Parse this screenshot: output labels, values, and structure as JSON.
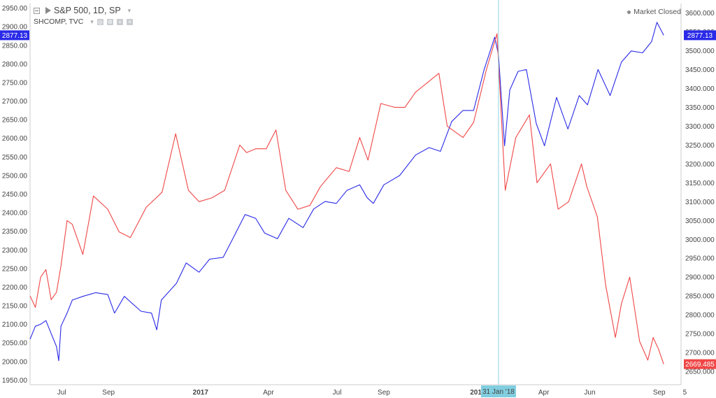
{
  "legend": {
    "symbol": "S&P 500, 1D, SP",
    "compare_symbol": "SHCOMP, TVC",
    "icons": [
      "collapse-icon",
      "flag-icon",
      "dropdown-caret-icon",
      "settings-icon",
      "gear-icon",
      "plus-icon",
      "close-icon"
    ]
  },
  "market_status": "Market Closed",
  "colors": {
    "sp500": "#2a2ae8",
    "shcomp": "#f04646",
    "crosshair": "#8fd3e3",
    "crosshair_label_bg": "#80cedf",
    "axis_line": "#cccccc"
  },
  "crosshair_date": "31 Jan '18",
  "price_labels": {
    "left": "2877.13",
    "right_top": "2877.13",
    "right_bottom": "2669.485"
  },
  "chart_data": {
    "type": "line",
    "title": "S&P 500, 1D, SP",
    "x_axis": {
      "start": "2016-05-20",
      "end": "2018-09-30",
      "tick_labels": [
        {
          "label": "Jul",
          "date": "2016-07-01",
          "bold": false
        },
        {
          "label": "Sep",
          "date": "2016-09-01",
          "bold": false
        },
        {
          "label": "2017",
          "date": "2017-01-01",
          "bold": true
        },
        {
          "label": "Apr",
          "date": "2017-04-01",
          "bold": false
        },
        {
          "label": "Jul",
          "date": "2017-07-01",
          "bold": false
        },
        {
          "label": "Sep",
          "date": "2017-09-01",
          "bold": false
        },
        {
          "label": "201",
          "date": "2018-01-01",
          "bold": true
        },
        {
          "label": "Apr",
          "date": "2018-04-01",
          "bold": false
        },
        {
          "label": "Jun",
          "date": "2018-06-01",
          "bold": false
        },
        {
          "label": "Sep",
          "date": "2018-09-01",
          "bold": false
        },
        {
          "label": "5",
          "date": "2018-10-05",
          "bold": false
        }
      ]
    },
    "left_axis": {
      "min": 1937.5,
      "max": 2962.5,
      "ticks": [
        1950,
        2000,
        2050,
        2100,
        2150,
        2200,
        2250,
        2300,
        2350,
        2400,
        2450,
        2500,
        2550,
        2600,
        2650,
        2700,
        2750,
        2800,
        2850,
        2900,
        2950
      ],
      "tick_labels": [
        "1950.00",
        "2000.00",
        "2050.00",
        "2100.00",
        "2150.00",
        "2200.00",
        "2250.00",
        "2300.00",
        "2350.00",
        "2400.00",
        "2450.00",
        "2500.00",
        "2550.00",
        "2600.00",
        "2650.00",
        "2700.00",
        "2750.00",
        "2800.00",
        "2850.00",
        "2900.00",
        "2950.00"
      ]
    },
    "right_axis": {
      "min": 2615,
      "max": 3625,
      "ticks": [
        2650,
        2700,
        2750,
        2800,
        2850,
        2900,
        2950,
        3000,
        3050,
        3100,
        3150,
        3200,
        3250,
        3300,
        3350,
        3400,
        3450,
        3500,
        3550,
        3600
      ],
      "tick_labels": [
        "2650.000",
        "2700.000",
        "2750.000",
        "2800.000",
        "2850.000",
        "2900.000",
        "2950.000",
        "3000.000",
        "3050.000",
        "3100.000",
        "3150.000",
        "3200.000",
        "3250.000",
        "3300.000",
        "3350.000",
        "3400.000",
        "3450.000",
        "3500.000",
        "3550.000",
        "3600.000"
      ]
    },
    "series": [
      {
        "name": "S&P 500, 1D, SP",
        "axis": "left",
        "color": "#2a2ae8",
        "points": [
          [
            "2016-05-20",
            2060
          ],
          [
            "2016-05-27",
            2095
          ],
          [
            "2016-06-03",
            2100
          ],
          [
            "2016-06-10",
            2110
          ],
          [
            "2016-06-17",
            2075
          ],
          [
            "2016-06-24",
            2040
          ],
          [
            "2016-06-27",
            2002
          ],
          [
            "2016-06-30",
            2095
          ],
          [
            "2016-07-08",
            2130
          ],
          [
            "2016-07-15",
            2165
          ],
          [
            "2016-07-29",
            2175
          ],
          [
            "2016-08-15",
            2185
          ],
          [
            "2016-08-31",
            2180
          ],
          [
            "2016-09-09",
            2130
          ],
          [
            "2016-09-22",
            2175
          ],
          [
            "2016-10-14",
            2135
          ],
          [
            "2016-10-28",
            2130
          ],
          [
            "2016-11-04",
            2085
          ],
          [
            "2016-11-10",
            2165
          ],
          [
            "2016-11-30",
            2210
          ],
          [
            "2016-12-13",
            2265
          ],
          [
            "2016-12-30",
            2240
          ],
          [
            "2017-01-13",
            2275
          ],
          [
            "2017-01-31",
            2280
          ],
          [
            "2017-02-14",
            2335
          ],
          [
            "2017-03-01",
            2395
          ],
          [
            "2017-03-15",
            2385
          ],
          [
            "2017-03-27",
            2345
          ],
          [
            "2017-04-13",
            2330
          ],
          [
            "2017-04-28",
            2385
          ],
          [
            "2017-05-17",
            2360
          ],
          [
            "2017-05-31",
            2410
          ],
          [
            "2017-06-15",
            2430
          ],
          [
            "2017-06-30",
            2425
          ],
          [
            "2017-07-14",
            2460
          ],
          [
            "2017-07-31",
            2475
          ],
          [
            "2017-08-10",
            2440
          ],
          [
            "2017-08-18",
            2425
          ],
          [
            "2017-09-01",
            2475
          ],
          [
            "2017-09-22",
            2500
          ],
          [
            "2017-10-13",
            2555
          ],
          [
            "2017-10-31",
            2575
          ],
          [
            "2017-11-15",
            2565
          ],
          [
            "2017-11-30",
            2645
          ],
          [
            "2017-12-15",
            2675
          ],
          [
            "2017-12-29",
            2675
          ],
          [
            "2018-01-12",
            2785
          ],
          [
            "2018-01-26",
            2872
          ],
          [
            "2018-01-31",
            2825
          ],
          [
            "2018-02-08",
            2580
          ],
          [
            "2018-02-15",
            2730
          ],
          [
            "2018-02-26",
            2780
          ],
          [
            "2018-03-09",
            2785
          ],
          [
            "2018-03-22",
            2640
          ],
          [
            "2018-04-02",
            2580
          ],
          [
            "2018-04-18",
            2710
          ],
          [
            "2018-05-03",
            2625
          ],
          [
            "2018-05-18",
            2715
          ],
          [
            "2018-05-29",
            2690
          ],
          [
            "2018-06-12",
            2785
          ],
          [
            "2018-06-28",
            2715
          ],
          [
            "2018-07-13",
            2805
          ],
          [
            "2018-07-26",
            2835
          ],
          [
            "2018-08-10",
            2830
          ],
          [
            "2018-08-22",
            2860
          ],
          [
            "2018-08-29",
            2912
          ],
          [
            "2018-09-07",
            2877.13
          ]
        ]
      },
      {
        "name": "SHCOMP, TVC",
        "axis": "right",
        "color": "#f04646",
        "points": [
          [
            "2016-05-20",
            2850
          ],
          [
            "2016-05-27",
            2820
          ],
          [
            "2016-06-03",
            2900
          ],
          [
            "2016-06-10",
            2920
          ],
          [
            "2016-06-17",
            2840
          ],
          [
            "2016-06-24",
            2860
          ],
          [
            "2016-06-30",
            2930
          ],
          [
            "2016-07-08",
            3050
          ],
          [
            "2016-07-15",
            3040
          ],
          [
            "2016-07-29",
            2960
          ],
          [
            "2016-08-12",
            3115
          ],
          [
            "2016-08-31",
            3080
          ],
          [
            "2016-09-15",
            3020
          ],
          [
            "2016-09-30",
            3005
          ],
          [
            "2016-10-21",
            3085
          ],
          [
            "2016-11-11",
            3125
          ],
          [
            "2016-11-29",
            3280
          ],
          [
            "2016-12-16",
            3130
          ],
          [
            "2016-12-30",
            3100
          ],
          [
            "2017-01-16",
            3110
          ],
          [
            "2017-02-02",
            3130
          ],
          [
            "2017-02-22",
            3250
          ],
          [
            "2017-03-03",
            3230
          ],
          [
            "2017-03-15",
            3240
          ],
          [
            "2017-03-29",
            3240
          ],
          [
            "2017-04-11",
            3290
          ],
          [
            "2017-04-24",
            3130
          ],
          [
            "2017-05-10",
            3080
          ],
          [
            "2017-05-26",
            3090
          ],
          [
            "2017-06-09",
            3140
          ],
          [
            "2017-06-30",
            3190
          ],
          [
            "2017-07-17",
            3180
          ],
          [
            "2017-07-31",
            3270
          ],
          [
            "2017-08-11",
            3210
          ],
          [
            "2017-08-28",
            3360
          ],
          [
            "2017-09-15",
            3350
          ],
          [
            "2017-09-29",
            3350
          ],
          [
            "2017-10-13",
            3390
          ],
          [
            "2017-11-13",
            3440
          ],
          [
            "2017-11-24",
            3300
          ],
          [
            "2017-12-15",
            3270
          ],
          [
            "2017-12-29",
            3310
          ],
          [
            "2018-01-15",
            3450
          ],
          [
            "2018-01-29",
            3545
          ],
          [
            "2018-02-09",
            3130
          ],
          [
            "2018-02-23",
            3270
          ],
          [
            "2018-03-13",
            3330
          ],
          [
            "2018-03-23",
            3150
          ],
          [
            "2018-04-10",
            3200
          ],
          [
            "2018-04-20",
            3080
          ],
          [
            "2018-05-04",
            3100
          ],
          [
            "2018-05-21",
            3200
          ],
          [
            "2018-05-28",
            3140
          ],
          [
            "2018-06-11",
            3060
          ],
          [
            "2018-06-22",
            2880
          ],
          [
            "2018-07-05",
            2740
          ],
          [
            "2018-07-13",
            2830
          ],
          [
            "2018-07-24",
            2900
          ],
          [
            "2018-08-06",
            2730
          ],
          [
            "2018-08-17",
            2680
          ],
          [
            "2018-08-24",
            2740
          ],
          [
            "2018-08-31",
            2710
          ],
          [
            "2018-09-07",
            2669.485
          ]
        ]
      }
    ]
  }
}
